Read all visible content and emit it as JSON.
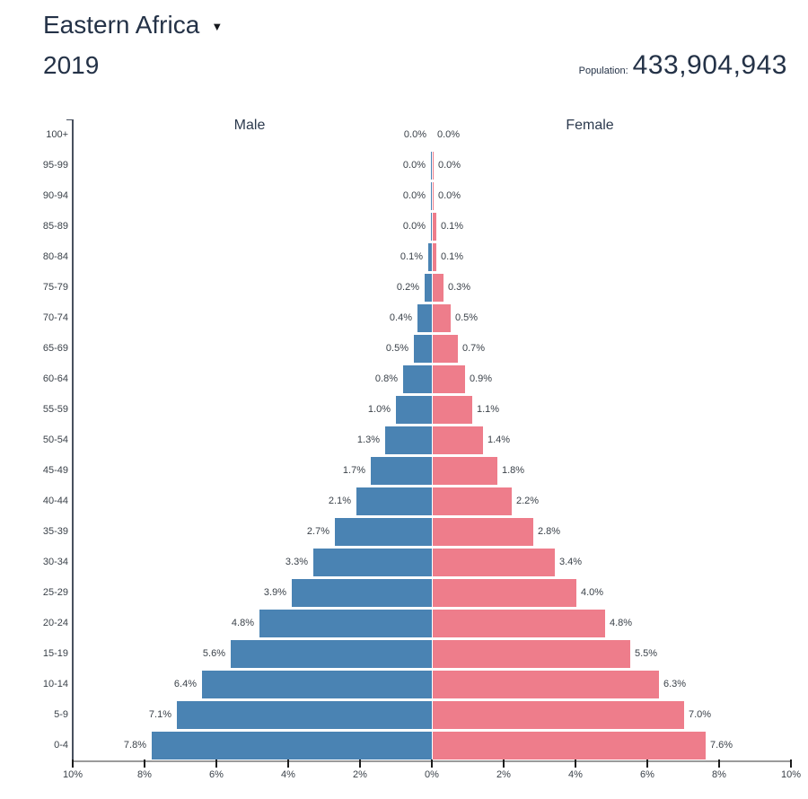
{
  "header": {
    "region": "Eastern Africa",
    "dropdown_icon": "▼",
    "year": "2019",
    "population_label": "Population:",
    "population_value": "433,904,943"
  },
  "chart_data": {
    "type": "bar",
    "variant": "population-pyramid",
    "orientation": "horizontal",
    "male_label": "Male",
    "female_label": "Female",
    "unit": "percent of total population",
    "x_axis_range_pct": [
      -10,
      10
    ],
    "categories_top_to_bottom": [
      "100+",
      "95-99",
      "90-94",
      "85-89",
      "80-84",
      "75-79",
      "70-74",
      "65-69",
      "60-64",
      "55-59",
      "50-54",
      "45-49",
      "40-44",
      "35-39",
      "30-34",
      "25-29",
      "20-24",
      "15-19",
      "10-14",
      "5-9",
      "0-4"
    ],
    "series": [
      {
        "name": "Male",
        "color": "#4a83b3",
        "values_pct": [
          0.0,
          0.0,
          0.0,
          0.0,
          0.1,
          0.2,
          0.4,
          0.5,
          0.8,
          1.0,
          1.3,
          1.7,
          2.1,
          2.7,
          3.3,
          3.9,
          4.8,
          5.6,
          6.4,
          7.1,
          7.8
        ]
      },
      {
        "name": "Female",
        "color": "#ee7d8b",
        "values_pct": [
          0.0,
          0.0,
          0.0,
          0.1,
          0.1,
          0.3,
          0.5,
          0.7,
          0.9,
          1.1,
          1.4,
          1.8,
          2.2,
          2.8,
          3.4,
          4.0,
          4.8,
          5.5,
          6.3,
          7.0,
          7.6
        ]
      }
    ],
    "x_ticks": [
      {
        "label": "10%",
        "pct": -10
      },
      {
        "label": "8%",
        "pct": -8
      },
      {
        "label": "6%",
        "pct": -6
      },
      {
        "label": "4%",
        "pct": -4
      },
      {
        "label": "2%",
        "pct": -2
      },
      {
        "label": "0%",
        "pct": 0
      },
      {
        "label": "2%",
        "pct": 2
      },
      {
        "label": "4%",
        "pct": 4
      },
      {
        "label": "6%",
        "pct": 6
      },
      {
        "label": "8%",
        "pct": 8
      },
      {
        "label": "10%",
        "pct": 10
      }
    ],
    "colors": {
      "male": "#4a83b3",
      "female": "#ee7d8b",
      "axis": "#47505e",
      "baseline": "#9b9b9b",
      "text": "#3a4149",
      "heading": "#243247"
    }
  }
}
